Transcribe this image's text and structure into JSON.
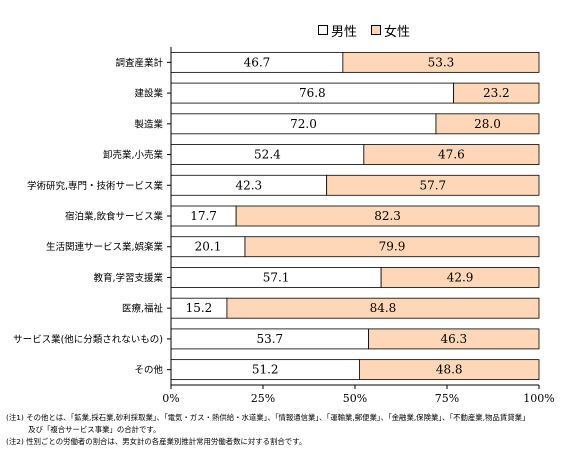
{
  "colors": {
    "male": "#ffffff",
    "female": "#fdd7b7",
    "axis": "#000000"
  },
  "chart_data": {
    "type": "bar",
    "orientation": "horizontal",
    "stacked": true,
    "percent_stacked": true,
    "title": "",
    "xlabel": "",
    "ylabel": "",
    "xlim": [
      0,
      100
    ],
    "legend_position": "top-right",
    "grid": false,
    "x_ticks": [
      "0%",
      "25%",
      "50%",
      "75%",
      "100%"
    ],
    "categories": [
      "調査産業計",
      "建設業",
      "製造業",
      "卸売業,小売業",
      "学術研究,専門・技術サービス業",
      "宿泊業,飲食サービス業",
      "生活関連サービス業,娯楽業",
      "教育,学習支援業",
      "医療,福祉",
      "サービス業(他に分類されないもの)",
      "その他"
    ],
    "series": [
      {
        "name": "男性",
        "values": [
          46.7,
          76.8,
          72.0,
          52.4,
          42.3,
          17.7,
          20.1,
          57.1,
          15.2,
          53.7,
          51.2
        ],
        "labels": [
          "46.7",
          "76.8",
          "72.0",
          "52.4",
          "42.3",
          "17.7",
          "20.1",
          "57.1",
          "15.2",
          "53.7",
          "51.2"
        ]
      },
      {
        "name": "女性",
        "values": [
          53.3,
          23.2,
          28.0,
          47.6,
          57.7,
          82.3,
          79.9,
          42.9,
          84.8,
          46.3,
          48.8
        ],
        "labels": [
          "53.3",
          "23.2",
          "28.0",
          "47.6",
          "57.7",
          "82.3",
          "79.9",
          "42.9",
          "84.8",
          "46.3",
          "48.8"
        ]
      }
    ]
  },
  "notes": [
    "(注1) その他とは、「鉱業,採石業,砂利採取業」、「電気・ガス・熱供給・水道業」、「情報通信業」、「運輸業,郵便業」、「金融業,保険業」、「不動産業,物品賃貸業」",
    "　　　及び「複合サービス事業」の合計です。",
    "(注2) 性別ごとの労働者の割合は、男女計の各産業別推計常用労働者数に対する割合です。"
  ]
}
